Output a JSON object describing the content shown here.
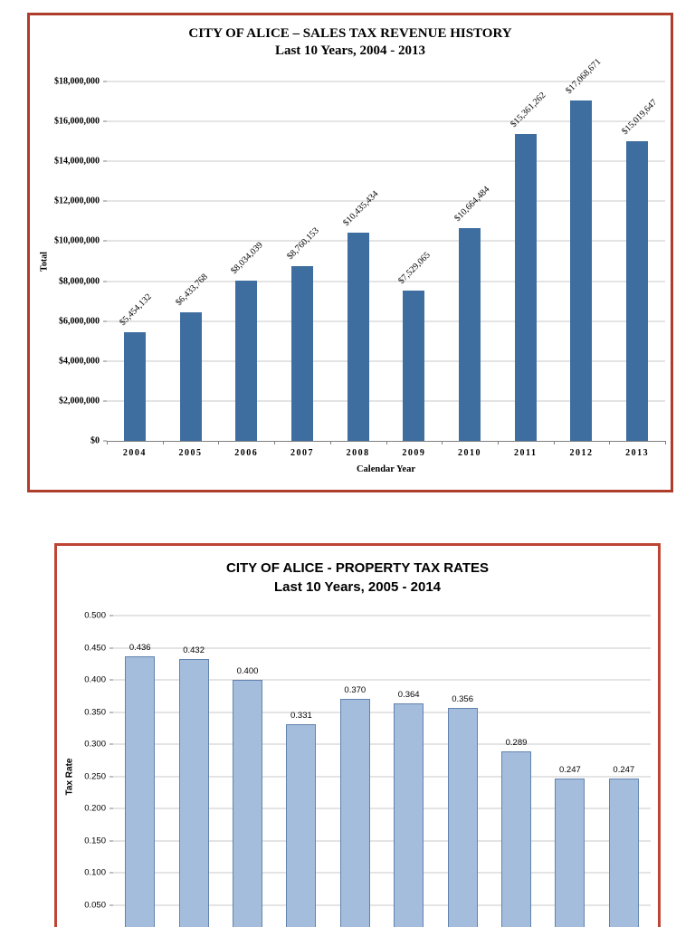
{
  "page": {
    "background": "#ffffff"
  },
  "chart_data": [
    {
      "type": "bar",
      "title": "CITY OF ALICE – SALES TAX REVENUE HISTORY",
      "subtitle": "Last 10 Years, 2004 - 2013",
      "xlabel": "Calendar Year",
      "ylabel": "Total",
      "categories": [
        "2004",
        "2005",
        "2006",
        "2007",
        "2008",
        "2009",
        "2010",
        "2011",
        "2012",
        "2013"
      ],
      "values": [
        5454132,
        6433768,
        8034039,
        8760153,
        10435434,
        7529065,
        10664484,
        15361262,
        17068671,
        15019647
      ],
      "data_labels": [
        "$5,454,132",
        "$6,433,768",
        "$8,034,039",
        "$8,760,153",
        "$10,435,434",
        "$7,529,065",
        "$10,664,484",
        "$15,361,262",
        "$17,068,671",
        "$15,019,647"
      ],
      "ylim": [
        0,
        18000000
      ],
      "ytick_values": [
        0,
        2000000,
        4000000,
        6000000,
        8000000,
        10000000,
        12000000,
        14000000,
        16000000,
        18000000
      ],
      "ytick_labels": [
        "$0",
        "$2,000,000",
        "$4,000,000",
        "$6,000,000",
        "$8,000,000",
        "$10,000,000",
        "$12,000,000",
        "$14,000,000",
        "$16,000,000",
        "$18,000,000"
      ],
      "grid": true,
      "legend": "none",
      "bar_color": "#3e6d9f",
      "bar_border": "",
      "frame_color": "#ae3e2b",
      "data_label_rotation": 45
    },
    {
      "type": "bar",
      "title": "CITY OF ALICE - PROPERTY TAX RATES",
      "subtitle": "Last 10 Years, 2005 - 2014",
      "xlabel": "",
      "ylabel": "Tax Rate",
      "categories": [],
      "values": [
        0.436,
        0.432,
        0.4,
        0.331,
        0.37,
        0.364,
        0.356,
        0.289,
        0.247,
        0.247
      ],
      "data_labels": [
        "0.436",
        "0.432",
        "0.400",
        "0.331",
        "0.370",
        "0.364",
        "0.356",
        "0.289",
        "0.247",
        "0.247"
      ],
      "ylim": [
        0,
        0.5
      ],
      "ytick_values": [
        0.05,
        0.1,
        0.15,
        0.2,
        0.25,
        0.3,
        0.35,
        0.4,
        0.45,
        0.5
      ],
      "ytick_labels": [
        "0.050",
        "0.100",
        "0.150",
        "0.200",
        "0.250",
        "0.300",
        "0.350",
        "0.400",
        "0.450",
        "0.500"
      ],
      "grid": true,
      "legend": "none",
      "bar_color": "#a4bddd",
      "bar_border": "#6283ae",
      "frame_color": "#be4434",
      "data_label_rotation": 0
    }
  ]
}
